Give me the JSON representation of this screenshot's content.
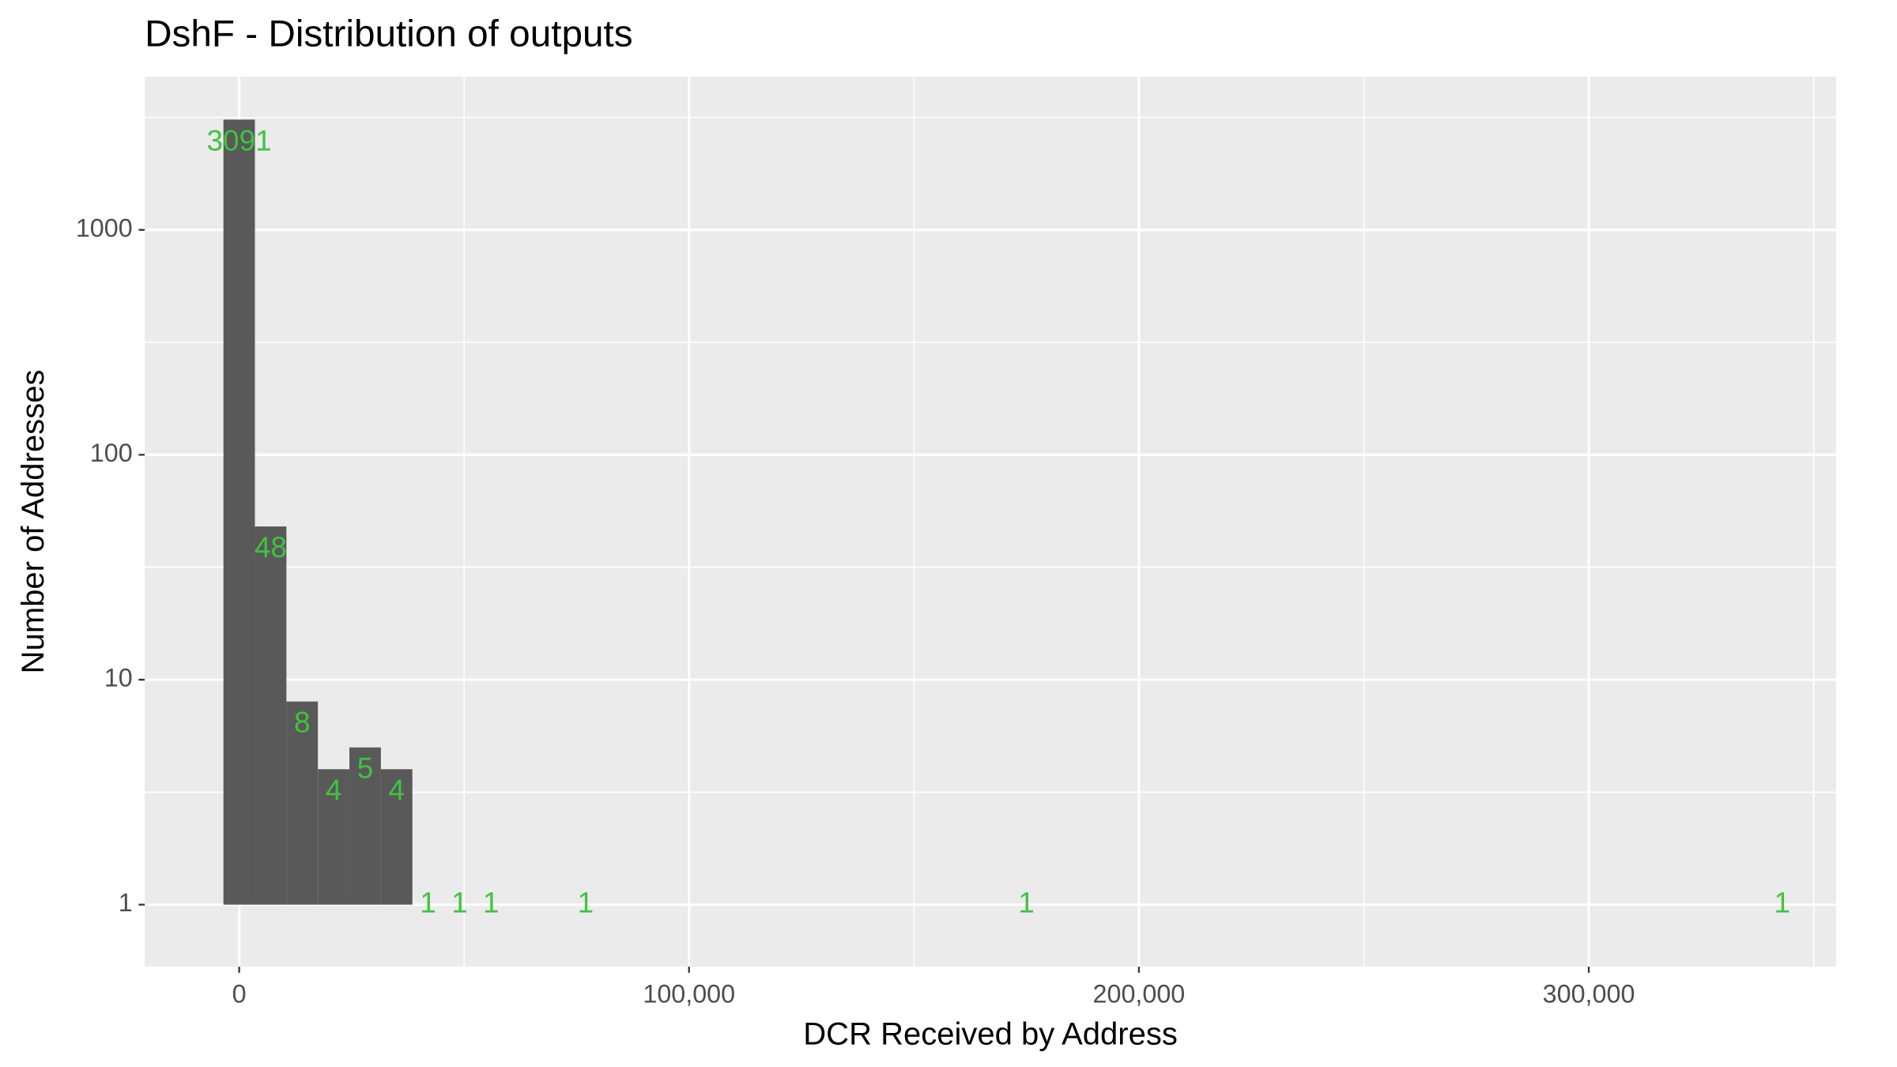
{
  "chart_data": {
    "type": "histogram",
    "title": "DshF - Distribution of outputs",
    "x_label": "DCR Received by Address",
    "y_label": "Number of Addresses",
    "bins": [
      -3500,
      3500,
      10500,
      17500,
      24500,
      31500,
      38500,
      45500,
      52500,
      59500,
      66500,
      73500,
      80500,
      87500,
      94500,
      101500,
      108500,
      115500,
      122500,
      129500,
      136500,
      143500,
      150500,
      157500,
      164500,
      171500,
      178500,
      185500,
      192500,
      199500,
      206500,
      213500,
      220500,
      227500,
      234500,
      241500,
      248500,
      255500,
      262500,
      269500,
      276500,
      283500,
      290500,
      297500,
      304500,
      311500,
      318500,
      325500,
      332500,
      339500,
      346500
    ],
    "values": [
      3091,
      48,
      8,
      4,
      5,
      4,
      1,
      1,
      1,
      null,
      null,
      1,
      null,
      null,
      null,
      null,
      null,
      null,
      null,
      null,
      null,
      null,
      null,
      null,
      null,
      1,
      null,
      null,
      null,
      null,
      null,
      null,
      null,
      null,
      null,
      null,
      null,
      null,
      null,
      null,
      null,
      null,
      null,
      null,
      null,
      null,
      null,
      null,
      null,
      1
    ],
    "color": "#595959",
    "label_color": "#3ec43e",
    "xlim": [
      -21000,
      355000
    ],
    "xticks": [
      0,
      {
        "value": 100000,
        "label": "100,000"
      },
      {
        "value": 200000,
        "label": "200,000"
      },
      {
        "value": 300000,
        "label": "300,000"
      }
    ],
    "ylim": [
      0.53,
      4800
    ],
    "yticks": [
      1,
      10,
      100,
      1000
    ],
    "y_scale": "log",
    "grid": true
  }
}
